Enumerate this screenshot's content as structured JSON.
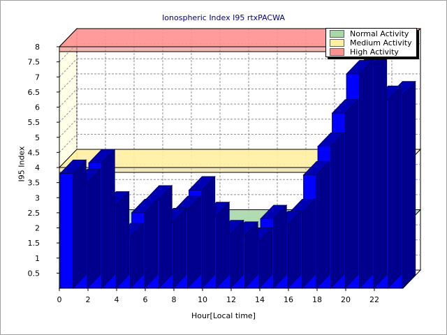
{
  "chart_data": {
    "type": "bar",
    "title": "Ionospheric Index I95 rtxPACWA",
    "xlabel": "Hour[Local time]",
    "ylabel": "I95 Index",
    "x": [
      0,
      1,
      2,
      3,
      4,
      5,
      6,
      7,
      8,
      9,
      10,
      11,
      12,
      13,
      14,
      15,
      16,
      17,
      18,
      19,
      20,
      21,
      22,
      23
    ],
    "values": [
      3.8,
      3.5,
      4.15,
      2.75,
      1.7,
      2.5,
      2.95,
      2.2,
      2.6,
      3.25,
      2.4,
      1.8,
      1.75,
      1.55,
      2.3,
      2.1,
      2.5,
      3.75,
      4.7,
      5.8,
      7.1,
      7.45,
      6.25,
      6.4
    ],
    "xlim": [
      0,
      24
    ],
    "ylim": [
      0,
      8
    ],
    "x_tick_labels": [
      "0",
      "2",
      "4",
      "6",
      "8",
      "10",
      "12",
      "14",
      "16",
      "18",
      "20",
      "22"
    ],
    "y_tick_labels": [
      "0.5",
      "1",
      "1.5",
      "2",
      "2.5",
      "3",
      "3.5",
      "4",
      "4.5",
      "5",
      "5.5",
      "6",
      "6.5",
      "7",
      "7.5",
      "8"
    ],
    "bands": [
      {
        "name": "Normal Activity",
        "value": 2,
        "color": "#a8d8a8"
      },
      {
        "name": "Medium Activity",
        "value": 4,
        "color": "#fff0a0"
      },
      {
        "name": "High Activity",
        "value": 8,
        "color": "#ff9090"
      }
    ],
    "bar_color": "#0000ff",
    "grid": true,
    "legend_position": "top-right"
  }
}
